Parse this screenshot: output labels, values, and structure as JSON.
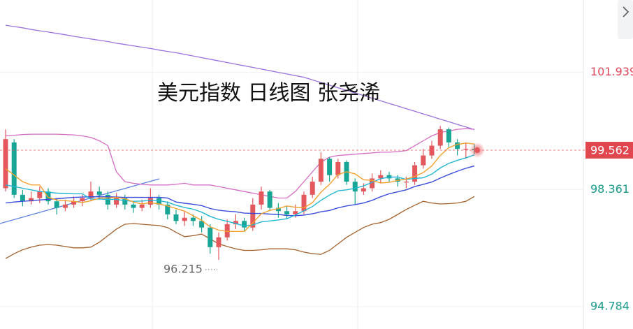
{
  "chart_data": {
    "type": "candlestick",
    "title": "美元指数 日线图 张尧浠",
    "ylim": [
      94.1,
      104.15
    ],
    "yticks": [
      101.939,
      98.361,
      94.784
    ],
    "ytick_colors": [
      "#e0475a",
      "#1a9a8a",
      "#1a9a8a"
    ],
    "last_price": 99.562,
    "up_color": "#e2585d",
    "down_color": "#19a595",
    "open": [
      98.4,
      99.8,
      98.2,
      98.0,
      98.1,
      98.3,
      98.0,
      97.8,
      97.9,
      98.0,
      98.1,
      98.3,
      98.2,
      97.9,
      98.1,
      97.9,
      97.8,
      97.9,
      98.1,
      97.9,
      97.6,
      97.4,
      97.5,
      97.4,
      97.2,
      96.6,
      96.9,
      97.3,
      97.4,
      97.2,
      97.9,
      98.3,
      97.8,
      97.7,
      97.6,
      97.7,
      98.2,
      98.6,
      99.3,
      98.8,
      99.2,
      98.6,
      98.3,
      98.4,
      98.7,
      98.8,
      98.7,
      98.6,
      98.6,
      99.1,
      99.4,
      99.7,
      100.2,
      99.8,
      99.6,
      99.6
    ],
    "high": [
      100.2,
      99.9,
      98.35,
      98.3,
      98.45,
      98.4,
      98.1,
      98.05,
      98.15,
      98.2,
      98.6,
      98.45,
      98.3,
      98.25,
      98.2,
      98.0,
      98.05,
      98.4,
      98.2,
      98.0,
      97.75,
      97.7,
      97.6,
      97.55,
      97.3,
      97.05,
      97.45,
      97.6,
      97.5,
      98.1,
      98.45,
      98.35,
      97.95,
      97.85,
      97.9,
      98.3,
      98.75,
      99.5,
      99.35,
      99.3,
      99.25,
      98.7,
      98.55,
      98.85,
      98.95,
      98.9,
      98.8,
      98.75,
      99.2,
      99.6,
      99.85,
      100.3,
      100.25,
      99.9,
      99.8,
      99.75
    ],
    "low": [
      98.3,
      98.1,
      97.85,
      97.9,
      97.95,
      97.9,
      97.6,
      97.7,
      97.8,
      97.85,
      98.0,
      98.05,
      97.75,
      97.8,
      97.75,
      97.65,
      97.7,
      97.8,
      97.75,
      97.45,
      97.3,
      97.25,
      97.25,
      97.05,
      96.4,
      96.215,
      96.8,
      97.15,
      97.1,
      97.1,
      97.75,
      97.7,
      97.5,
      97.45,
      97.5,
      97.6,
      98.1,
      98.5,
      98.6,
      98.7,
      98.5,
      97.9,
      98.2,
      98.3,
      98.55,
      98.6,
      98.45,
      98.4,
      98.5,
      99.0,
      99.3,
      99.6,
      99.65,
      99.4,
      99.3,
      99.45
    ],
    "close": [
      99.9,
      98.2,
      98.0,
      98.1,
      98.3,
      98.0,
      97.8,
      97.9,
      98.0,
      98.1,
      98.3,
      98.2,
      97.9,
      98.1,
      97.9,
      97.8,
      97.9,
      98.1,
      97.9,
      97.6,
      97.4,
      97.5,
      97.4,
      97.2,
      96.6,
      96.9,
      97.3,
      97.4,
      97.2,
      97.9,
      98.3,
      97.8,
      97.7,
      97.6,
      97.7,
      98.2,
      98.6,
      99.3,
      98.8,
      99.2,
      98.6,
      98.3,
      98.4,
      98.7,
      98.8,
      98.7,
      98.6,
      98.6,
      99.1,
      99.4,
      99.7,
      100.2,
      99.8,
      99.6,
      99.6,
      99.562
    ],
    "low_label_index": 25,
    "bands": [
      {
        "color": "#9b72e0",
        "values": [
          103.38,
          103.34,
          103.3,
          103.25,
          103.21,
          103.17,
          103.13,
          103.09,
          103.04,
          103.0,
          102.96,
          102.92,
          102.88,
          102.83,
          102.79,
          102.75,
          102.71,
          102.67,
          102.62,
          102.58,
          102.54,
          102.49,
          102.44,
          102.39,
          102.34,
          102.29,
          102.24,
          102.19,
          102.14,
          102.09,
          102.04,
          101.99,
          101.94,
          101.89,
          101.84,
          101.79,
          101.71,
          101.63,
          101.55,
          101.47,
          101.39,
          101.31,
          101.23,
          101.15,
          101.07,
          100.99,
          100.91,
          100.83,
          100.75,
          100.67,
          100.59,
          100.51,
          100.43,
          100.35,
          100.27,
          100.19
        ]
      },
      {
        "color": "#d56cc6",
        "values": [
          100.0,
          100.02,
          100.04,
          100.05,
          100.05,
          100.05,
          100.05,
          100.04,
          100.03,
          100.0,
          99.95,
          99.85,
          99.7,
          98.9,
          98.6,
          98.55,
          98.52,
          98.5,
          98.5,
          98.5,
          98.52,
          98.55,
          98.5,
          98.5,
          98.5,
          98.45,
          98.4,
          98.35,
          98.3,
          98.25,
          98.2,
          98.15,
          98.1,
          98.1,
          98.3,
          98.6,
          98.9,
          99.2,
          99.35,
          99.4,
          99.42,
          99.44,
          99.46,
          99.48,
          99.5,
          99.5,
          99.52,
          99.55,
          99.7,
          99.85,
          100.0,
          100.1,
          100.15,
          100.2,
          100.22,
          100.2
        ]
      },
      {
        "color": "#a5612c",
        "values": [
          96.25,
          96.4,
          96.52,
          96.6,
          96.66,
          96.68,
          96.66,
          96.62,
          96.58,
          96.58,
          96.6,
          96.75,
          96.95,
          97.15,
          97.3,
          97.32,
          97.3,
          97.28,
          97.26,
          97.2,
          97.05,
          96.92,
          96.95,
          97.0,
          96.85,
          96.7,
          96.62,
          96.55,
          96.5,
          96.5,
          96.52,
          96.55,
          96.55,
          96.55,
          96.52,
          96.45,
          96.4,
          96.38,
          96.5,
          96.7,
          96.9,
          97.05,
          97.2,
          97.3,
          97.35,
          97.45,
          97.6,
          97.75,
          97.88,
          98.0,
          97.95,
          97.92,
          97.93,
          97.95,
          98.0,
          98.15
        ]
      }
    ],
    "lines": [
      {
        "color": "#3a4ddc",
        "values": [
          97.95,
          97.98,
          98.0,
          98.02,
          98.04,
          98.06,
          98.08,
          98.1,
          98.12,
          98.13,
          98.14,
          98.14,
          98.14,
          98.13,
          98.12,
          98.12,
          98.12,
          98.12,
          98.12,
          98.1,
          97.98,
          97.94,
          97.91,
          97.87,
          97.78,
          97.73,
          97.7,
          97.68,
          97.64,
          97.63,
          97.63,
          97.61,
          97.6,
          97.57,
          97.56,
          97.58,
          97.62,
          97.68,
          97.72,
          97.8,
          97.86,
          97.9,
          97.95,
          98.03,
          98.14,
          98.23,
          98.29,
          98.35,
          98.45,
          98.52,
          98.59,
          98.71,
          98.82,
          98.92,
          99.01,
          99.08
        ]
      },
      {
        "color": "#22b6d4",
        "values": [
          98.5,
          98.45,
          98.4,
          98.35,
          98.3,
          98.28,
          98.25,
          98.24,
          98.23,
          98.23,
          98.07,
          98.07,
          98.06,
          98.06,
          98.02,
          98.0,
          98.01,
          98.03,
          98.02,
          97.97,
          97.88,
          97.81,
          97.76,
          97.67,
          97.54,
          97.45,
          97.39,
          97.32,
          97.25,
          97.28,
          97.37,
          97.4,
          97.43,
          97.47,
          97.58,
          97.71,
          97.84,
          98.03,
          98.19,
          98.32,
          98.35,
          98.4,
          98.47,
          98.58,
          98.69,
          98.74,
          98.74,
          98.67,
          98.7,
          98.72,
          98.83,
          99.02,
          99.16,
          99.25,
          99.33,
          99.42
        ]
      },
      {
        "color": "#f3a12e",
        "values": [
          99.0,
          98.8,
          98.6,
          98.5,
          98.5,
          98.12,
          98.04,
          98.02,
          98.0,
          97.96,
          98.02,
          98.1,
          98.1,
          98.12,
          98.08,
          97.98,
          97.92,
          97.96,
          97.92,
          97.86,
          97.78,
          97.7,
          97.56,
          97.42,
          97.22,
          97.12,
          97.08,
          97.08,
          97.08,
          97.34,
          97.62,
          97.72,
          97.78,
          97.86,
          97.82,
          97.8,
          97.96,
          98.28,
          98.52,
          98.82,
          98.9,
          98.84,
          98.66,
          98.64,
          98.56,
          98.58,
          98.64,
          98.68,
          98.76,
          98.88,
          99.08,
          99.4,
          99.64,
          99.74,
          99.78,
          99.75
        ]
      }
    ]
  }
}
